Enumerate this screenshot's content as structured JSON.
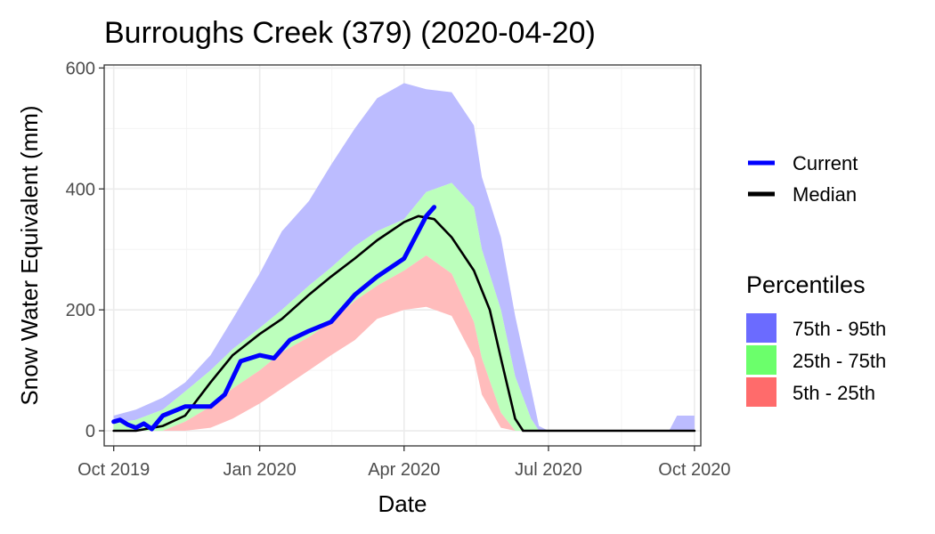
{
  "chart_data": {
    "type": "area",
    "title": "Burroughs Creek (379) (2020-04-20)",
    "xlabel": "Date",
    "ylabel": "Snow Water Equivalent (mm)",
    "xlim": [
      "2019-09-25",
      "2020-10-05"
    ],
    "ylim": [
      -25,
      605
    ],
    "x_ticks": [
      {
        "date": "2019-10-01",
        "label": "Oct 2019"
      },
      {
        "date": "2020-01-01",
        "label": "Jan 2020"
      },
      {
        "date": "2020-04-01",
        "label": "Apr 2020"
      },
      {
        "date": "2020-07-01",
        "label": "Jul 2020"
      },
      {
        "date": "2020-10-01",
        "label": "Oct 2020"
      }
    ],
    "y_ticks": [
      0,
      200,
      400,
      600
    ],
    "grid": true,
    "legend_position": "right",
    "legend_lines": [
      {
        "label": "Current",
        "color": "#0000ff"
      },
      {
        "label": "Median",
        "color": "#000000"
      }
    ],
    "legend_fill_title": "Percentiles",
    "legend_fills": [
      {
        "label": "75th - 95th",
        "color": "#6b6bff"
      },
      {
        "label": "25th - 75th",
        "color": "#6bff6b"
      },
      {
        "label": "5th - 25th",
        "color": "#ff6b6b"
      }
    ],
    "band_colors": {
      "p75_95": "#bcbcff",
      "p25_75": "#bcffbc",
      "p5_25": "#ffbcbc"
    },
    "band_x": [
      "2019-10-01",
      "2019-10-15",
      "2019-11-01",
      "2019-11-15",
      "2019-12-01",
      "2019-12-15",
      "2020-01-01",
      "2020-01-15",
      "2020-02-01",
      "2020-02-15",
      "2020-03-01",
      "2020-03-15",
      "2020-04-01",
      "2020-04-15",
      "2020-05-01",
      "2020-05-15",
      "2020-05-20",
      "2020-06-01",
      "2020-06-10",
      "2020-06-20",
      "2020-06-25",
      "2020-07-01",
      "2020-08-01",
      "2020-09-01",
      "2020-09-15",
      "2020-09-20",
      "2020-10-01"
    ],
    "p95": [
      25,
      35,
      55,
      80,
      125,
      185,
      260,
      330,
      380,
      440,
      500,
      550,
      575,
      565,
      560,
      505,
      420,
      320,
      190,
      70,
      8,
      0,
      0,
      0,
      0,
      25,
      25
    ],
    "p75": [
      12,
      18,
      35,
      65,
      100,
      135,
      170,
      200,
      240,
      270,
      305,
      330,
      350,
      395,
      410,
      370,
      300,
      200,
      90,
      20,
      0,
      0,
      0,
      0,
      0,
      0,
      0
    ],
    "p25": [
      0,
      0,
      0,
      15,
      40,
      70,
      100,
      130,
      155,
      180,
      215,
      240,
      265,
      290,
      260,
      180,
      120,
      30,
      0,
      0,
      0,
      0,
      0,
      0,
      0,
      0,
      0
    ],
    "p5": [
      0,
      0,
      0,
      0,
      5,
      20,
      45,
      70,
      100,
      125,
      150,
      185,
      200,
      205,
      190,
      120,
      60,
      5,
      0,
      0,
      0,
      0,
      0,
      0,
      0,
      0,
      0
    ],
    "median": {
      "x": [
        "2019-10-01",
        "2019-10-15",
        "2019-11-01",
        "2019-11-15",
        "2019-12-01",
        "2019-12-15",
        "2020-01-01",
        "2020-01-15",
        "2020-02-01",
        "2020-02-15",
        "2020-03-01",
        "2020-03-15",
        "2020-04-01",
        "2020-04-10",
        "2020-04-20",
        "2020-05-01",
        "2020-05-15",
        "2020-05-25",
        "2020-06-01",
        "2020-06-10",
        "2020-06-15",
        "2020-07-01",
        "2020-10-01"
      ],
      "y": [
        0,
        0,
        8,
        25,
        80,
        125,
        160,
        185,
        225,
        255,
        285,
        315,
        345,
        355,
        350,
        320,
        265,
        200,
        120,
        20,
        0,
        0,
        0
      ]
    },
    "current": {
      "x": [
        "2019-10-01",
        "2019-10-05",
        "2019-10-10",
        "2019-10-15",
        "2019-10-20",
        "2019-10-25",
        "2019-11-01",
        "2019-11-15",
        "2019-12-01",
        "2019-12-10",
        "2019-12-20",
        "2020-01-01",
        "2020-01-10",
        "2020-01-20",
        "2020-02-01",
        "2020-02-15",
        "2020-03-01",
        "2020-03-15",
        "2020-04-01",
        "2020-04-10",
        "2020-04-15",
        "2020-04-20"
      ],
      "y": [
        15,
        18,
        10,
        5,
        12,
        3,
        25,
        40,
        40,
        60,
        115,
        125,
        120,
        150,
        165,
        180,
        225,
        255,
        285,
        330,
        355,
        370
      ]
    }
  }
}
